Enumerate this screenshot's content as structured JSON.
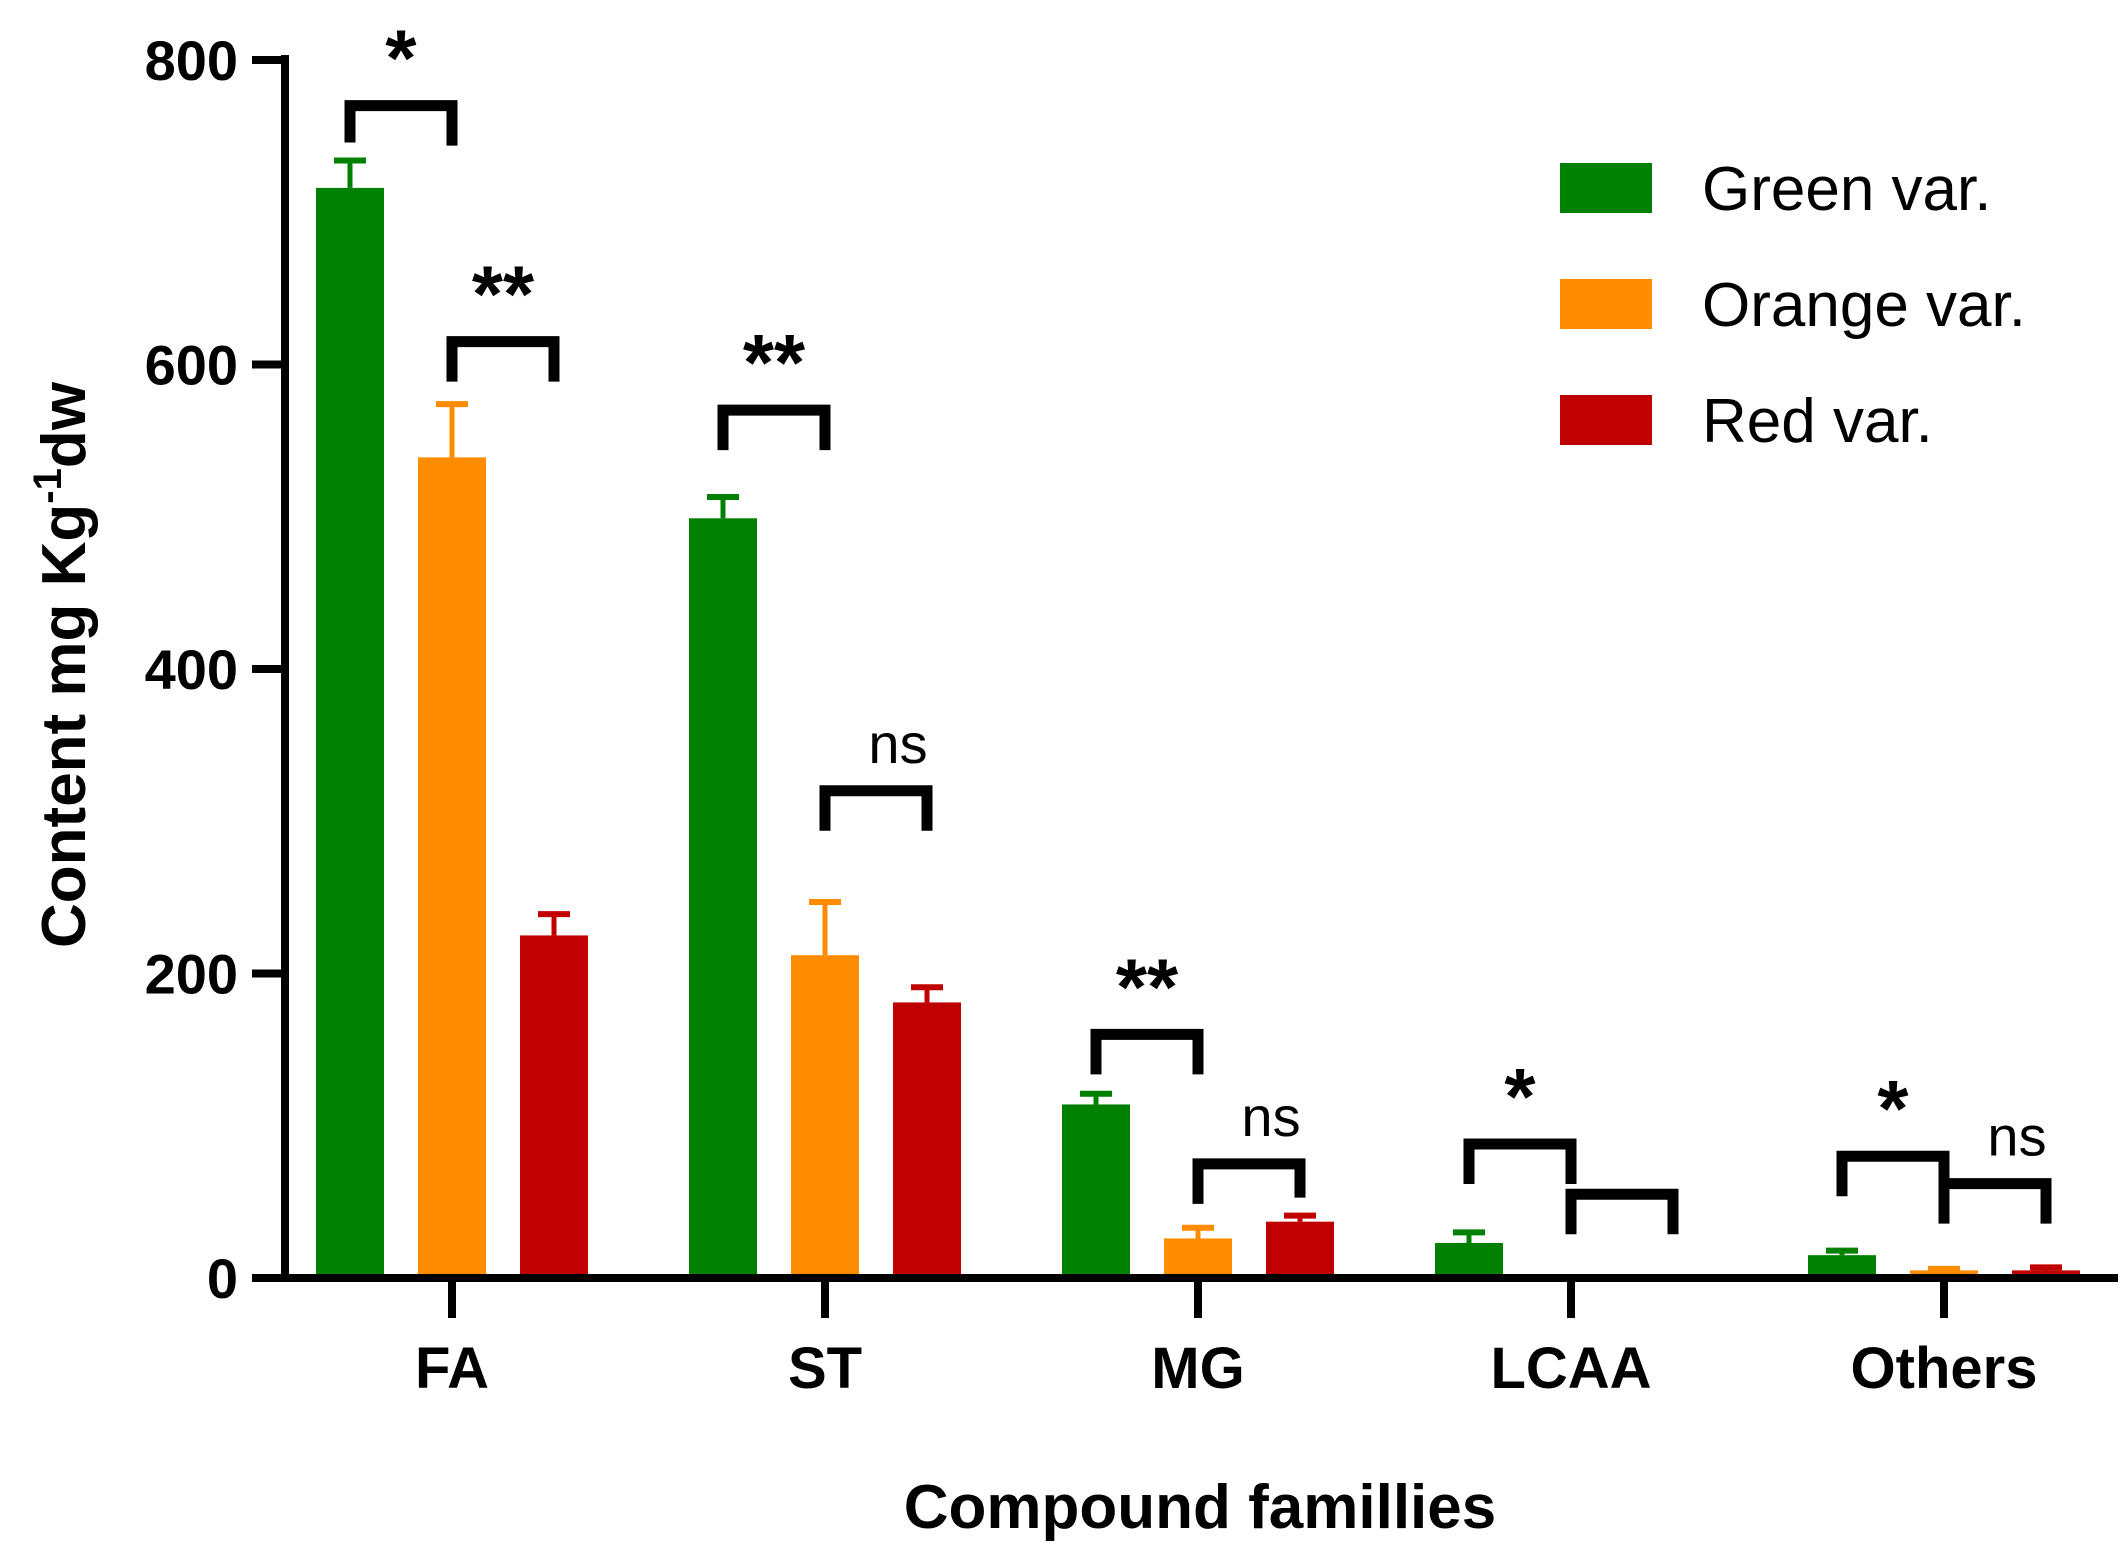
{
  "chart_data": {
    "type": "bar",
    "xlabel": "Compound famillies",
    "ylabel_main": "Content mg Kg",
    "ylabel_sup": "-1",
    "ylabel_tail": "dw",
    "ylim": [
      0,
      800
    ],
    "yticks": [
      "0",
      "200",
      "400",
      "600",
      "800"
    ],
    "categories": [
      "FA",
      "ST",
      "MG",
      "LCAA",
      "Others"
    ],
    "legend_position": "top-right",
    "series": [
      {
        "name": "Green var.",
        "color": "#008000",
        "values": [
          716,
          499,
          114,
          23,
          15
        ],
        "errors": [
          18,
          14,
          7,
          7,
          3
        ]
      },
      {
        "name": "Orange var.",
        "color": "#ff8c00",
        "values": [
          539,
          212,
          26,
          0,
          5
        ],
        "errors": [
          35,
          35,
          7,
          0,
          1
        ]
      },
      {
        "name": "Red var.",
        "color": "#c00000",
        "values": [
          225,
          181,
          37,
          0,
          5
        ],
        "errors": [
          14,
          10,
          4,
          0,
          2
        ]
      }
    ],
    "significance": [
      {
        "category": 0,
        "from_series": 0,
        "to_series": 1,
        "label": "*",
        "level": 770
      },
      {
        "category": 0,
        "from_series": 1,
        "to_series": 2,
        "label": "**",
        "level": 615
      },
      {
        "category": 1,
        "from_series": 0,
        "to_series": 1,
        "label": "**",
        "level": 570
      },
      {
        "category": 1,
        "from_series": 1,
        "to_series": 2,
        "label": "ns",
        "level": 320
      },
      {
        "category": 2,
        "from_series": 0,
        "to_series": 1,
        "label": "**",
        "level": 160
      },
      {
        "category": 2,
        "from_series": 1,
        "to_series": 2,
        "label": "ns",
        "level": 75
      },
      {
        "category": 3,
        "from_series": 0,
        "to_series": 1,
        "label": "*",
        "level": 88
      },
      {
        "category": 3,
        "from_series": 1,
        "to_series": 2,
        "label": "",
        "level": 55
      },
      {
        "category": 4,
        "from_series": 0,
        "to_series": 1,
        "label": "*",
        "level": 80
      },
      {
        "category": 4,
        "from_series": 1,
        "to_series": 2,
        "label": "ns",
        "level": 62
      }
    ]
  }
}
